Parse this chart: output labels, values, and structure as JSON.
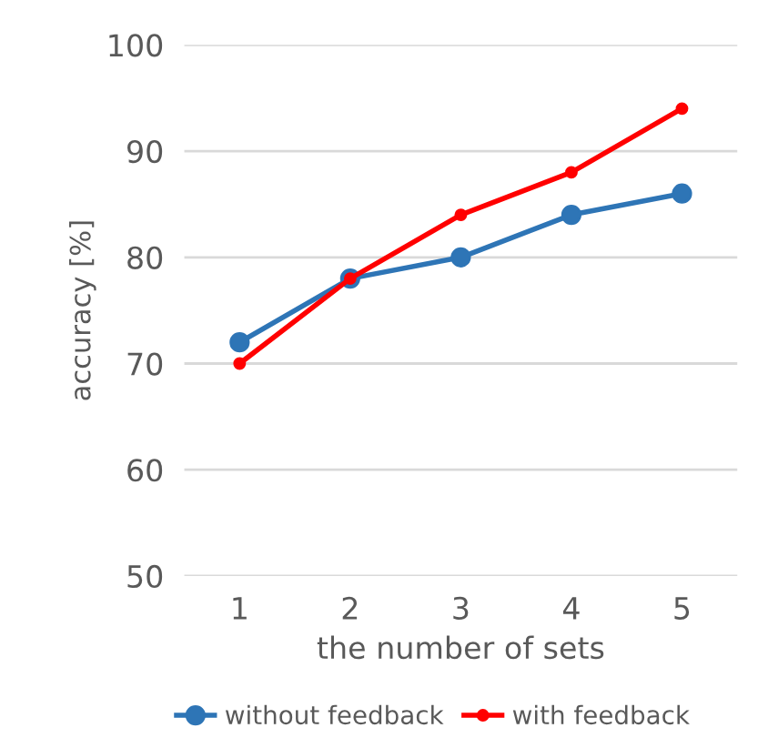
{
  "chart_data": {
    "type": "line",
    "xlabel": "the number of sets",
    "ylabel": "accuracy [%]",
    "categories": [
      "1",
      "2",
      "3",
      "4",
      "5"
    ],
    "series": [
      {
        "name": "without feedback",
        "color": "#2e75b6",
        "values": [
          72,
          78,
          80,
          84,
          86
        ]
      },
      {
        "name": "with feedback",
        "color": "#ff0000",
        "values": [
          70,
          78,
          84,
          88,
          94
        ]
      }
    ],
    "ylim": [
      50,
      100
    ],
    "yticks": [
      50,
      60,
      70,
      80,
      90,
      100
    ],
    "grid": "y",
    "legend": "bottom",
    "marker": "circle"
  }
}
